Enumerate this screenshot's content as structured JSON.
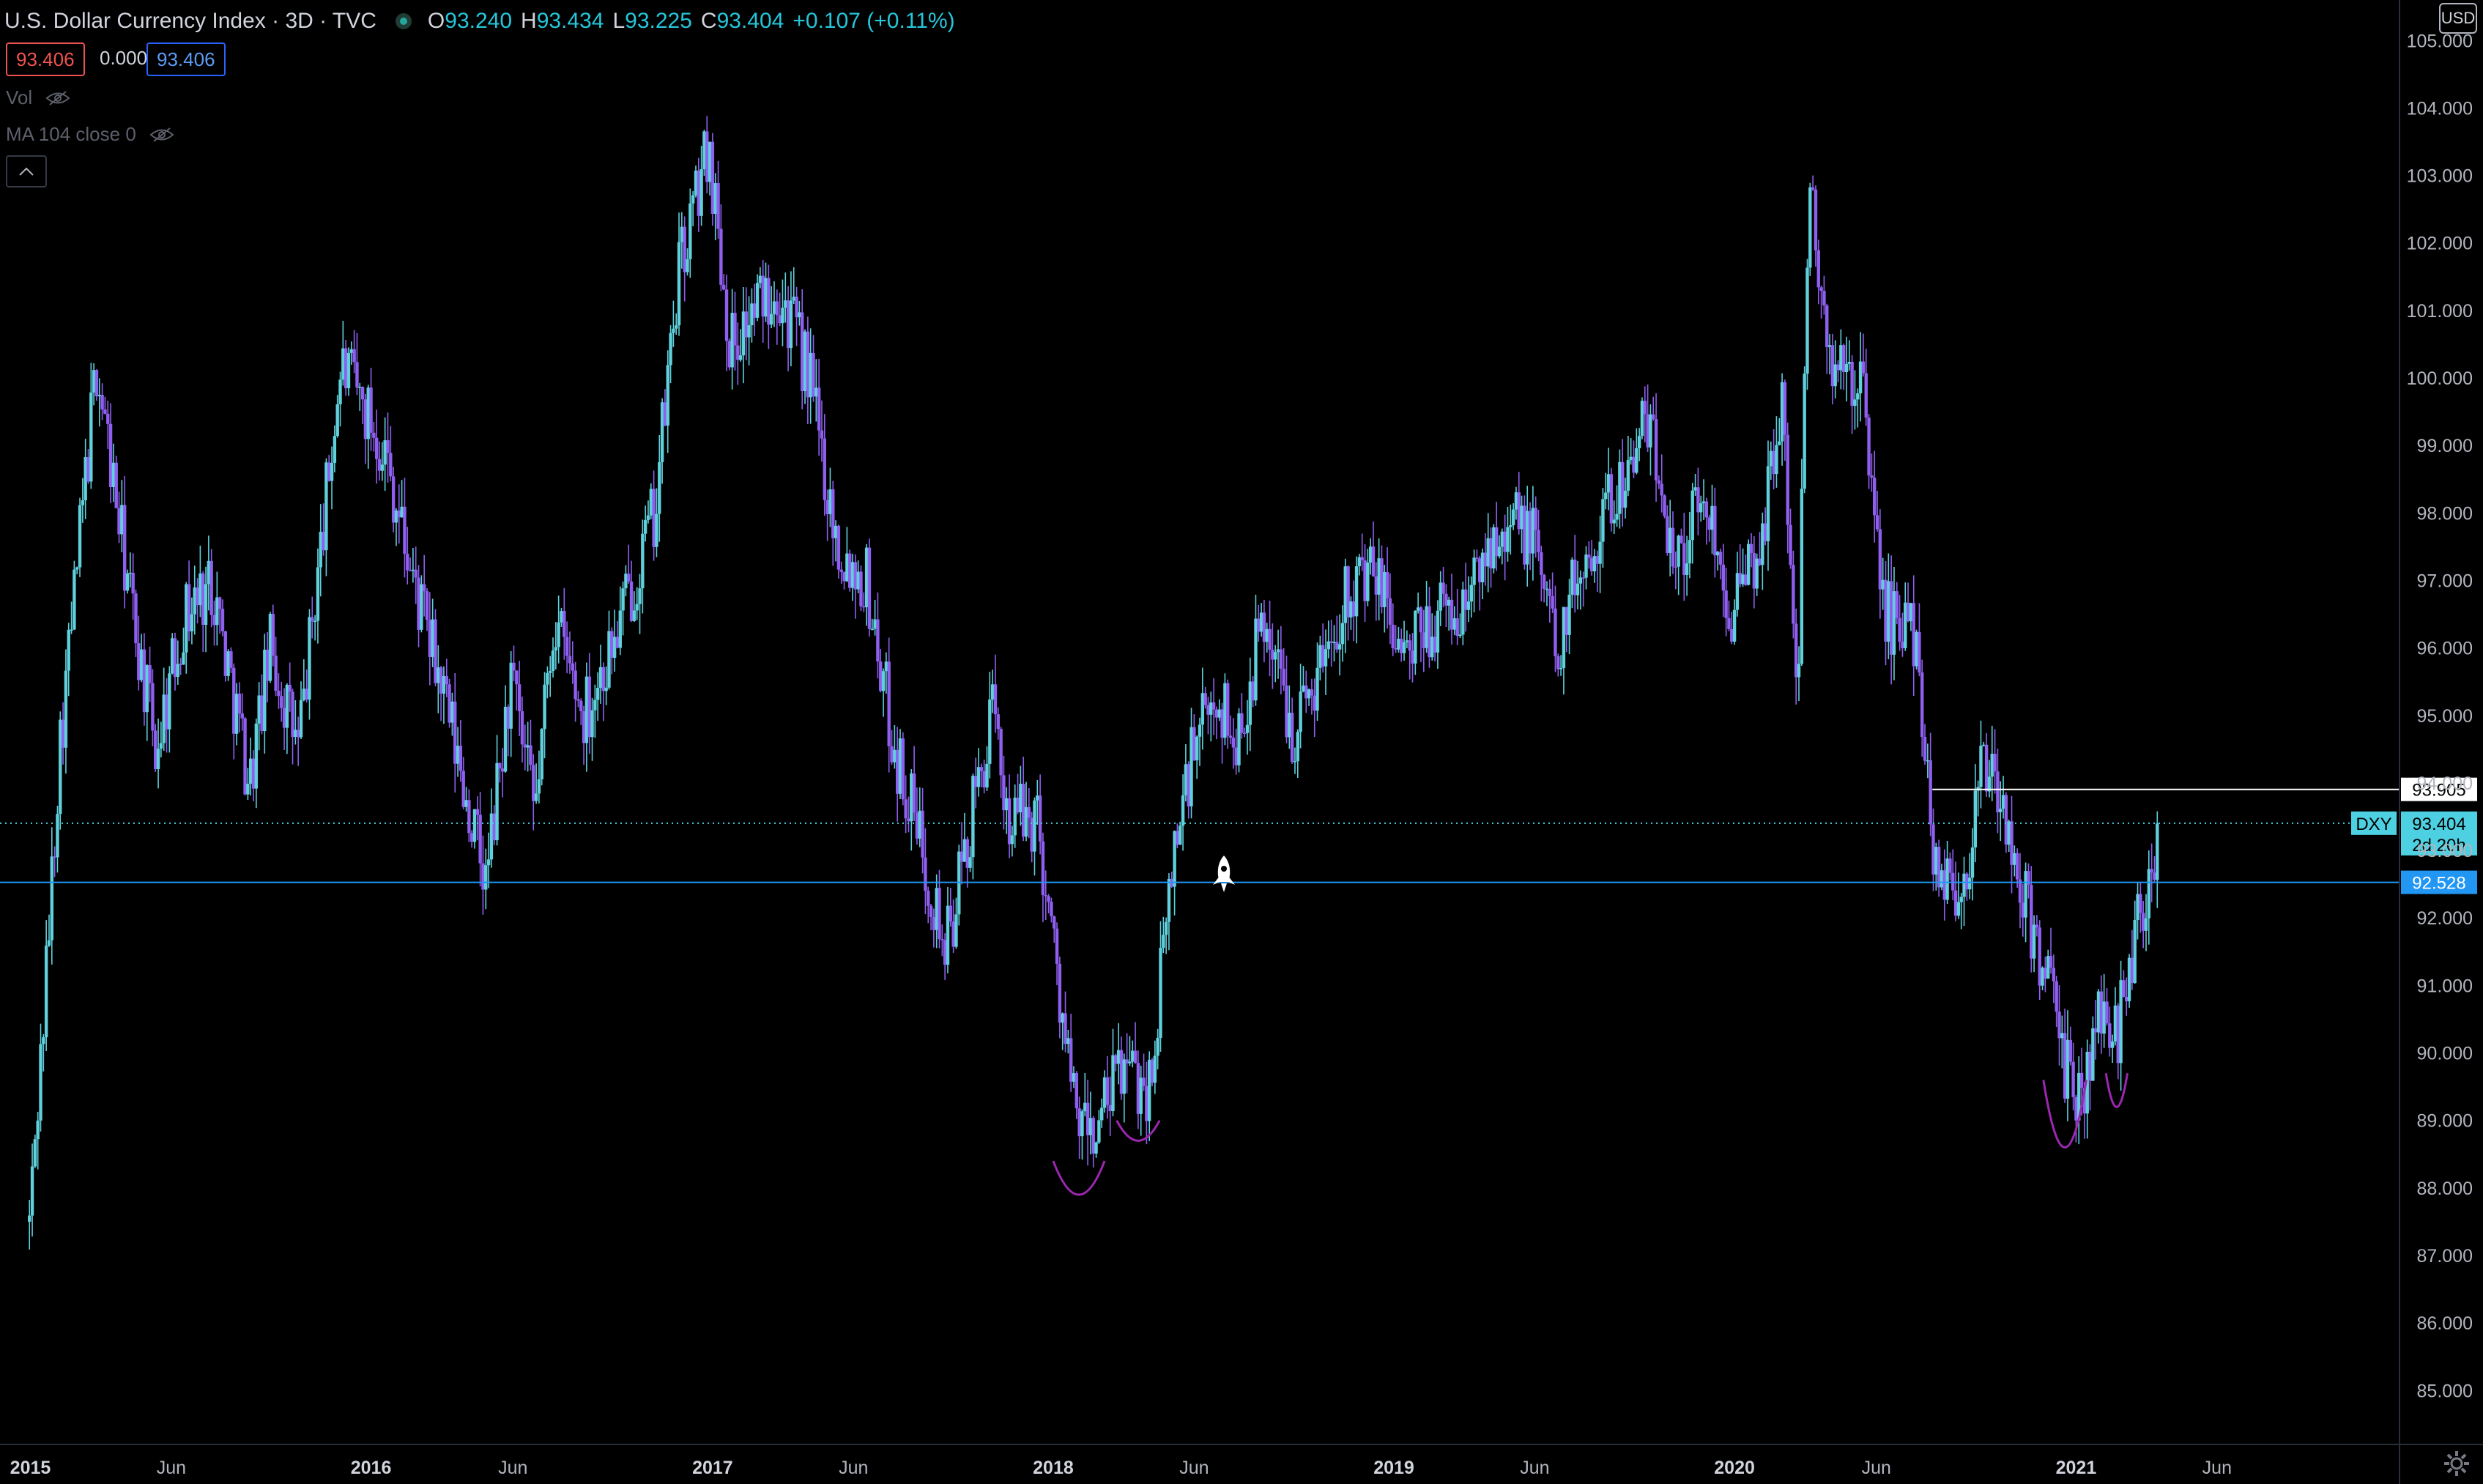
{
  "header": {
    "title": "U.S. Dollar Currency Index · 3D · TVC",
    "open_label": "O",
    "open": "93.240",
    "high_label": "H",
    "high": "93.434",
    "low_label": "L",
    "low": "93.225",
    "close_label": "C",
    "close": "93.404",
    "change": "+0.107 (+0.11%)",
    "status_color": "#26a69a"
  },
  "price_boxes": {
    "bid": "93.406",
    "spread": "0.000",
    "ask": "93.406"
  },
  "indicators": [
    {
      "label": "Vol",
      "icon": "eye-hidden-icon"
    },
    {
      "label": "MA 104 close 0",
      "icon": "eye-hidden-icon"
    }
  ],
  "currency_button": "USD",
  "chart_data": {
    "type": "candlestick",
    "symbol": "DXY",
    "x": [
      "2015-01",
      "2015-06",
      "2016-01",
      "2016-06",
      "2017-01",
      "2017-06",
      "2018-01",
      "2018-06",
      "2019-01",
      "2019-06",
      "2020-01",
      "2020-06",
      "2021-01",
      "2021-06"
    ],
    "x_ticks": [
      "2015",
      "Jun",
      "2016",
      "Jun",
      "2017",
      "Jun",
      "2018",
      "Jun",
      "2019",
      "Jun",
      "2020",
      "Jun",
      "2021",
      "Jun"
    ],
    "y_ticks": [
      "105.000",
      "104.000",
      "103.000",
      "102.000",
      "101.000",
      "100.000",
      "99.000",
      "98.000",
      "97.000",
      "96.000",
      "95.000",
      "94.000",
      "93.000",
      "92.000",
      "91.000",
      "90.000",
      "89.000",
      "88.000",
      "87.000",
      "86.000",
      "85.000"
    ],
    "ylim": [
      84.2,
      105.6
    ],
    "anchors": [
      [
        "2014-12-31",
        87.5
      ],
      [
        "2015-01-15",
        90.5
      ],
      [
        "2015-02-01",
        94.5
      ],
      [
        "2015-03-13",
        100.2
      ],
      [
        "2015-04-15",
        97.0
      ],
      [
        "2015-05-15",
        94.5
      ],
      [
        "2015-06-15",
        96.5
      ],
      [
        "2015-07-15",
        97.0
      ],
      [
        "2015-08-24",
        94.0
      ],
      [
        "2015-09-15",
        96.0
      ],
      [
        "2015-10-15",
        94.5
      ],
      [
        "2015-11-30",
        100.2
      ],
      [
        "2016-01-15",
        99.0
      ],
      [
        "2016-02-15",
        97.0
      ],
      [
        "2016-03-15",
        95.5
      ],
      [
        "2016-05-03",
        92.5
      ],
      [
        "2016-05-30",
        95.5
      ],
      [
        "2016-06-24",
        93.5
      ],
      [
        "2016-07-15",
        96.5
      ],
      [
        "2016-08-15",
        95.0
      ],
      [
        "2016-09-15",
        96.0
      ],
      [
        "2016-10-31",
        98.0
      ],
      [
        "2016-11-25",
        101.5
      ],
      [
        "2016-12-28",
        103.5
      ],
      [
        "2017-01-20",
        100.5
      ],
      [
        "2017-02-15",
        101.0
      ],
      [
        "2017-03-10",
        101.5
      ],
      [
        "2017-04-15",
        100.0
      ],
      [
        "2017-05-15",
        97.5
      ],
      [
        "2017-06-15",
        97.0
      ],
      [
        "2017-07-15",
        94.5
      ],
      [
        "2017-08-15",
        93.0
      ],
      [
        "2017-09-08",
        91.5
      ],
      [
        "2017-10-27",
        95.0
      ],
      [
        "2017-11-15",
        93.5
      ],
      [
        "2017-12-15",
        93.5
      ],
      [
        "2018-01-25",
        89.0
      ],
      [
        "2018-02-16",
        88.8
      ],
      [
        "2018-03-15",
        89.8
      ],
      [
        "2018-04-15",
        89.5
      ],
      [
        "2018-05-10",
        93.0
      ],
      [
        "2018-05-31",
        94.5
      ],
      [
        "2018-06-28",
        95.3
      ],
      [
        "2018-07-15",
        94.5
      ],
      [
        "2018-08-15",
        96.5
      ],
      [
        "2018-09-15",
        94.8
      ],
      [
        "2018-10-15",
        95.8
      ],
      [
        "2018-11-15",
        97.0
      ],
      [
        "2018-12-15",
        97.0
      ],
      [
        "2019-01-15",
        95.8
      ],
      [
        "2019-02-15",
        96.5
      ],
      [
        "2019-03-15",
        96.5
      ],
      [
        "2019-04-25",
        98.0
      ],
      [
        "2019-06-01",
        97.6
      ],
      [
        "2019-06-25",
        96.0
      ],
      [
        "2019-07-15",
        97.0
      ],
      [
        "2019-08-15",
        98.0
      ],
      [
        "2019-09-30",
        99.3
      ],
      [
        "2019-10-31",
        97.3
      ],
      [
        "2019-11-30",
        98.3
      ],
      [
        "2019-12-31",
        96.5
      ],
      [
        "2020-01-31",
        97.6
      ],
      [
        "2020-02-20",
        99.8
      ],
      [
        "2020-03-09",
        95.2
      ],
      [
        "2020-03-20",
        102.8
      ],
      [
        "2020-04-15",
        100.0
      ],
      [
        "2020-05-15",
        100.0
      ],
      [
        "2020-06-10",
        96.5
      ],
      [
        "2020-07-15",
        96.2
      ],
      [
        "2020-07-31",
        93.0
      ],
      [
        "2020-08-31",
        92.3
      ],
      [
        "2020-09-25",
        94.4
      ],
      [
        "2020-10-15",
        93.5
      ],
      [
        "2020-11-05",
        92.3
      ],
      [
        "2020-12-01",
        91.2
      ],
      [
        "2020-12-17",
        89.8
      ],
      [
        "2021-01-06",
        89.3
      ],
      [
        "2021-01-25",
        90.5
      ],
      [
        "2021-02-15",
        90.4
      ],
      [
        "2021-03-05",
        91.8
      ],
      [
        "2021-03-31",
        93.4
      ]
    ],
    "levels": [
      {
        "price": 93.905,
        "label": "93.905",
        "from": "2020-07-31",
        "style": "solid",
        "color": "#ffffff"
      },
      {
        "price": 92.528,
        "label": "92.528",
        "style": "solid",
        "color": "#2196f3"
      },
      {
        "price": 93.404,
        "label": "93.404",
        "tag": "DXY",
        "countdown": "2d 20h",
        "style": "dotted",
        "color": "#4dd0e1"
      }
    ],
    "annotations": [
      {
        "type": "arc",
        "x1": "2018-01-01",
        "x2": "2018-02-25",
        "top": 88.4,
        "bottom": 87.9
      },
      {
        "type": "arc",
        "x1": "2018-03-10",
        "x2": "2018-04-25",
        "top": 89.0,
        "bottom": 88.7
      },
      {
        "type": "arc",
        "x1": "2020-11-27",
        "x2": "2021-01-12",
        "top": 89.6,
        "bottom": 88.6
      },
      {
        "type": "arc",
        "x1": "2021-02-02",
        "x2": "2021-02-25",
        "top": 89.7,
        "bottom": 89.2
      }
    ],
    "colors": {
      "up": "#5fd0dc",
      "down": "#8f5ff0",
      "annotation": "#9c27b0"
    }
  }
}
